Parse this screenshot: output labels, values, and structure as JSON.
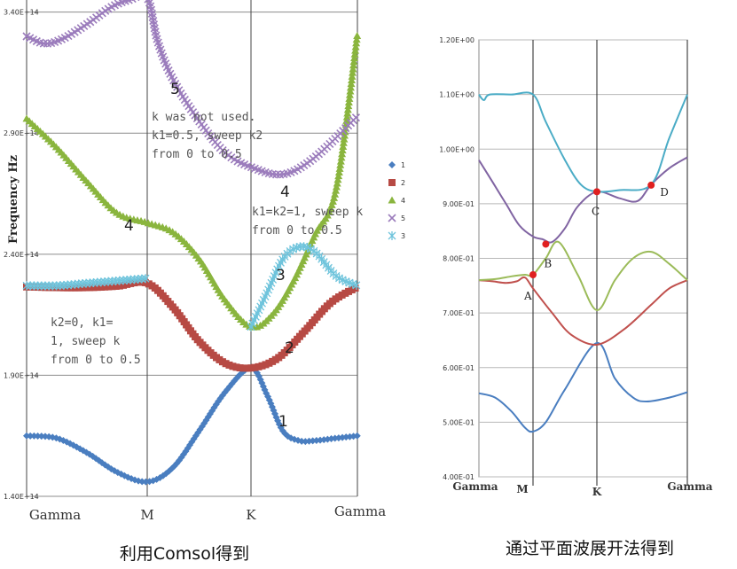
{
  "chart_data": [
    {
      "type": "line",
      "ylabel": "Frequency Hz",
      "yticks": [
        "1.40E+14",
        "1.90E+14",
        "2.40E+14",
        "2.90E+14",
        "3.40E+14"
      ],
      "ytick_values": [
        140000000000000.0,
        190000000000000.0,
        240000000000000.0,
        290000000000000.0,
        340000000000000.0
      ],
      "ylim": [
        140000000000000.0,
        345000000000000.0
      ],
      "categories": [
        "Gamma",
        "M",
        "K",
        "Gamma"
      ],
      "category_positions": [
        0,
        1,
        2,
        3
      ],
      "grid": true,
      "legend_position": "right",
      "series": [
        {
          "name": "1",
          "color": "#4a7ec0",
          "marker": "diamond",
          "band_label": "1",
          "x": [
            0,
            0.25,
            0.5,
            0.75,
            1,
            1.25,
            1.5,
            1.75,
            2,
            2.15,
            2.3,
            2.45,
            2.6,
            2.8,
            3
          ],
          "y": [
            165000000000000.0,
            164000000000000.0,
            158000000000000.0,
            150000000000000.0,
            146000000000000.0,
            152000000000000.0,
            167000000000000.0,
            183000000000000.0,
            193000000000000.0,
            182000000000000.0,
            167000000000000.0,
            163000000000000.0,
            163000000000000.0,
            164000000000000.0,
            165000000000000.0
          ]
        },
        {
          "name": "2",
          "color": "#b74a44",
          "marker": "square",
          "band_label": "2",
          "x": [
            0,
            0.25,
            0.5,
            0.75,
            1,
            1.25,
            1.5,
            1.75,
            2,
            2.25,
            2.5,
            2.75,
            3
          ],
          "y": [
            226500000000000.0,
            226200000000000.0,
            226200000000000.0,
            226800000000000.0,
            228000000000000.0,
            218000000000000.0,
            204000000000000.0,
            195000000000000.0,
            193000000000000.0,
            197000000000000.0,
            208000000000000.0,
            220000000000000.0,
            226500000000000.0
          ]
        },
        {
          "name": "4",
          "color": "#8ab53e",
          "marker": "triangle",
          "band_label": "4",
          "x": [
            0,
            0.25,
            0.5,
            0.75,
            1,
            1.25,
            1.5,
            1.75,
            2,
            2.2,
            2.4,
            2.6,
            2.8,
            3
          ],
          "y": [
            296000000000000.0,
            284000000000000.0,
            270000000000000.0,
            257000000000000.0,
            253000000000000.0,
            249000000000000.0,
            238000000000000.0,
            221000000000000.0,
            210000000000000.0,
            215000000000000.0,
            229000000000000.0,
            248000000000000.0,
            267000000000000.0,
            331000000000000.0
          ]
        },
        {
          "name": "5",
          "color": "#9b7cbc",
          "marker": "x",
          "band_label": "5",
          "x": [
            0,
            0.15,
            0.3,
            0.5,
            0.7,
            0.85,
            1,
            1.1,
            1.25,
            1.5,
            1.75,
            2,
            2.3,
            2.6,
            3
          ],
          "y": [
            330000000000000.0,
            327000000000000.0,
            329000000000000.0,
            335000000000000.0,
            342000000000000.0,
            345000000000000.0,
            346000000000000.0,
            328000000000000.0,
            312000000000000.0,
            295000000000000.0,
            282000000000000.0,
            276000000000000.0,
            273000000000000.0,
            280000000000000.0,
            297000000000000.0
          ]
        },
        {
          "name": "3",
          "color": "#6fc4dc",
          "marker": "star",
          "band_label": "3",
          "x": [
            0,
            0.25,
            0.5,
            0.75,
            1,
            1.01,
            2,
            2.15,
            2.3,
            2.45,
            2.6,
            2.8,
            3
          ],
          "y": [
            227000000000000.0,
            227000000000000.0,
            228000000000000.0,
            229000000000000.0,
            230000000000000.0,
            null,
            210000000000000.0,
            224000000000000.0,
            238000000000000.0,
            243000000000000.0,
            241000000000000.0,
            231000000000000.0,
            227000000000000.0
          ]
        }
      ],
      "annotations": [
        "k was not used.",
        "k1=0.5, sweep k2",
        "from 0 to 0.5",
        "k1=k2=1, sweep k",
        "from 0 to 0.5",
        "k2=0, k1=",
        "1, sweep k",
        "from 0 to 0.5"
      ],
      "caption": "利用Comsol得到"
    },
    {
      "type": "line",
      "yticks": [
        "4.00E-01",
        "5.00E-01",
        "6.00E-01",
        "7.00E-01",
        "8.00E-01",
        "9.00E-01",
        "1.00E+00",
        "1.10E+00",
        "1.20E+00"
      ],
      "ytick_values": [
        0.4,
        0.5,
        0.6,
        0.7,
        0.8,
        0.9,
        1.0,
        1.1,
        1.2
      ],
      "ylim": [
        0.4,
        1.2
      ],
      "categories": [
        "Gamma",
        "M",
        "K",
        "Gamma"
      ],
      "category_positions": [
        0,
        1,
        2,
        3
      ],
      "grid": true,
      "series": [
        {
          "color": "#4a7ec0",
          "x": [
            0,
            0.3,
            0.6,
            0.85,
            1,
            1.2,
            1.5,
            2,
            2.2,
            2.4,
            2.55,
            2.8,
            3
          ],
          "y": [
            0.553,
            0.545,
            0.52,
            0.49,
            0.483,
            0.5,
            0.56,
            0.645,
            0.58,
            0.545,
            0.538,
            0.545,
            0.555
          ]
        },
        {
          "color": "#c0504d",
          "x": [
            0,
            0.25,
            0.5,
            0.7,
            0.85,
            1,
            1.3,
            1.6,
            2,
            2.3,
            2.6,
            2.8,
            3
          ],
          "y": [
            0.76,
            0.758,
            0.755,
            0.758,
            0.765,
            0.745,
            0.7,
            0.66,
            0.642,
            0.67,
            0.715,
            0.745,
            0.76
          ]
        },
        {
          "color": "#9bbb59",
          "x": [
            0,
            0.3,
            0.6,
            0.85,
            1,
            1.2,
            1.4,
            1.7,
            2,
            2.2,
            2.4,
            2.6,
            2.8,
            3
          ],
          "y": [
            0.76,
            0.762,
            0.767,
            0.77,
            0.77,
            0.8,
            0.83,
            0.77,
            0.705,
            0.76,
            0.8,
            0.812,
            0.79,
            0.76
          ]
        },
        {
          "color": "#8064a2",
          "x": [
            0,
            0.25,
            0.5,
            0.75,
            1,
            1.15,
            1.3,
            1.5,
            1.7,
            2,
            2.25,
            2.45,
            2.6,
            2.8,
            3
          ],
          "y": [
            0.98,
            0.94,
            0.9,
            0.86,
            0.84,
            0.835,
            0.83,
            0.855,
            0.895,
            0.922,
            0.91,
            0.905,
            0.935,
            0.965,
            0.985
          ]
        },
        {
          "color": "#4bacc6",
          "x": [
            0,
            0.05,
            0.1,
            0.2,
            0.6,
            1,
            1.2,
            1.5,
            1.75,
            2,
            2.25,
            2.6,
            2.8,
            3
          ],
          "y": [
            1.1,
            1.093,
            1.09,
            1.1,
            1.1,
            1.1,
            1.05,
            0.98,
            0.935,
            0.922,
            0.925,
            0.935,
            1.02,
            1.1
          ]
        }
      ],
      "points": [
        {
          "label": "A",
          "x": 1,
          "y": 0.77
        },
        {
          "label": "B",
          "x": 1.2,
          "y": 0.826
        },
        {
          "label": "C",
          "x": 2,
          "y": 0.922
        },
        {
          "label": "D",
          "x": 2.6,
          "y": 0.934
        }
      ],
      "caption": "通过平面波展开法得到"
    }
  ]
}
